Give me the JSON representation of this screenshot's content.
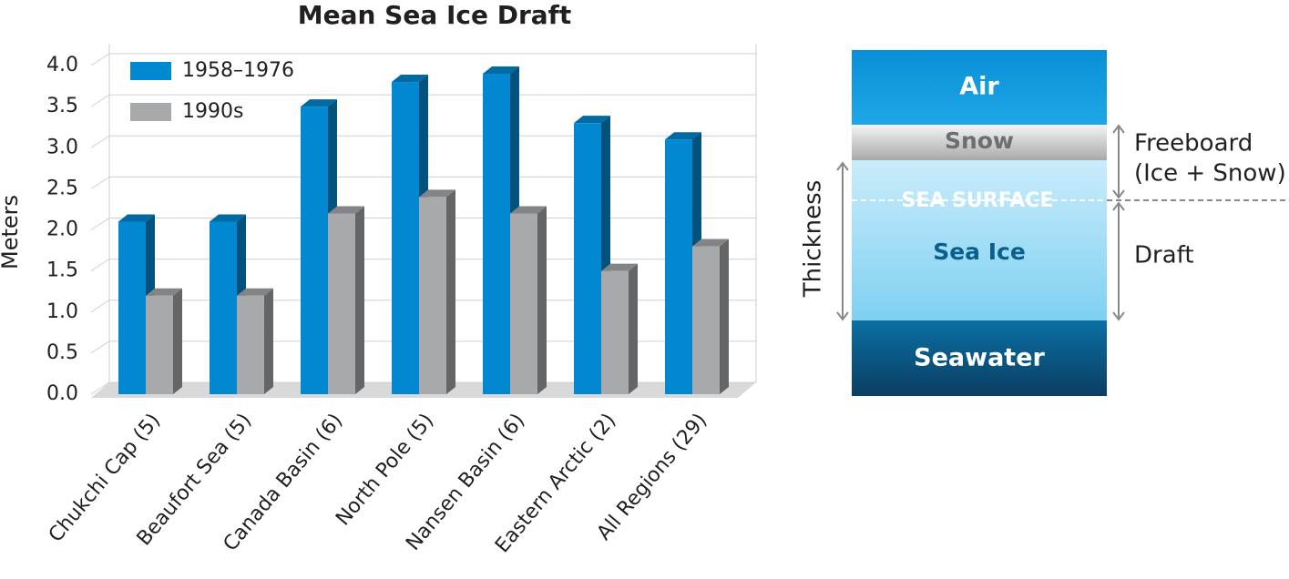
{
  "chart_data": {
    "type": "bar3d",
    "title": "Mean Sea Ice Draft",
    "y_label": "Meters",
    "categories": [
      "Chukchi Cap (5)",
      "Beaufort Sea (5)",
      "Canada Basin (6)",
      "North Pole (5)",
      "Nansen Basin (6)",
      "Eastern Arctic (2)",
      "All Regions (29)"
    ],
    "series": [
      {
        "name": "1958–1976",
        "color": "#0288d1",
        "values": [
          2.1,
          2.1,
          3.5,
          3.8,
          3.9,
          3.3,
          3.1
        ]
      },
      {
        "name": "1990s",
        "color": "#a7a9ac",
        "values": [
          1.2,
          1.2,
          2.2,
          2.4,
          2.2,
          1.5,
          1.8
        ]
      }
    ],
    "ylim": [
      0,
      4
    ],
    "yticks": [
      {
        "value": 0,
        "label": "0.0"
      },
      {
        "value": 0.5,
        "label": "0.5"
      },
      {
        "value": 1,
        "label": "1.0"
      },
      {
        "value": 1.5,
        "label": "1.5"
      },
      {
        "value": 2,
        "label": "2.0"
      },
      {
        "value": 2.5,
        "label": "2.5"
      },
      {
        "value": 3,
        "label": "3.0"
      },
      {
        "value": 3.5,
        "label": "3.5"
      },
      {
        "value": 4,
        "label": "4.0"
      }
    ],
    "grid": true,
    "legend": "upper left"
  },
  "diagram": {
    "layers": {
      "air": "Air",
      "snow": "Snow",
      "sea_surface": "SEA SURFACE",
      "sea_ice": "Sea Ice",
      "seawater": "Seawater"
    },
    "labels": {
      "thickness": "Thickness",
      "freeboard": "Freeboard",
      "freeboard_note": "(Ice + Snow)",
      "draft": "Draft"
    }
  }
}
